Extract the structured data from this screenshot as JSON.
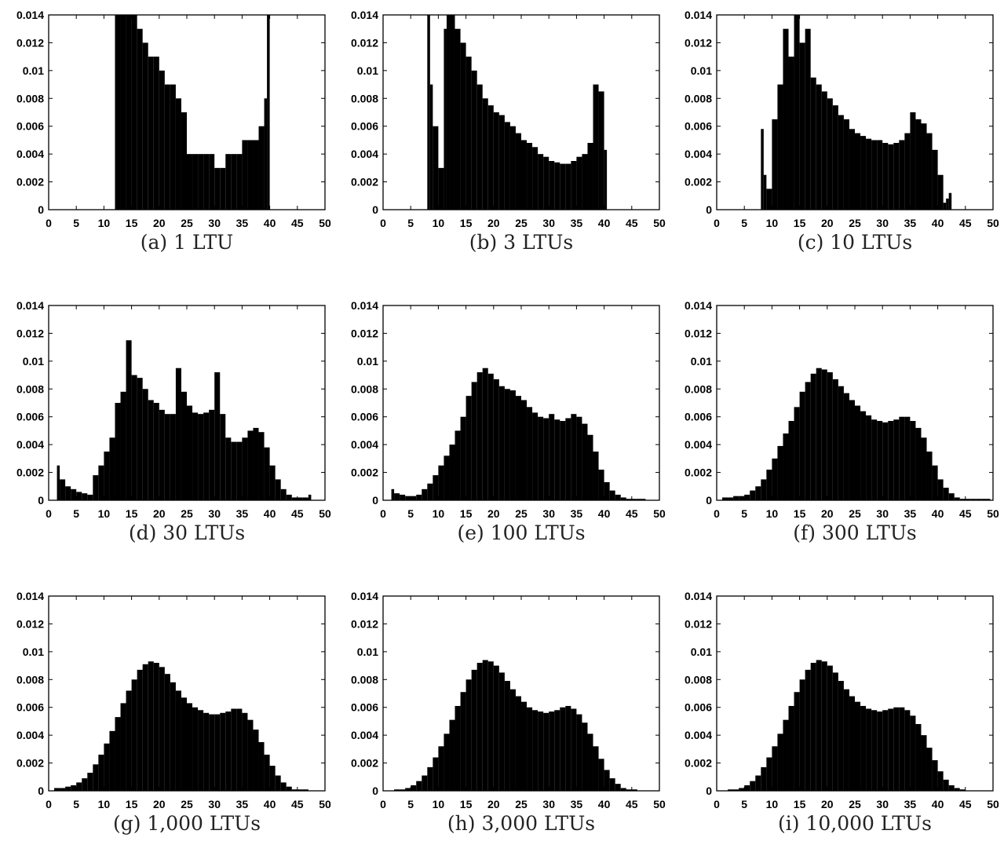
{
  "chart_data": [
    {
      "type": "bar",
      "caption": "(a) 1 LTU",
      "xlim": [
        0,
        50
      ],
      "ylim": [
        0,
        0.014
      ],
      "xticks": [
        "0",
        "5",
        "10",
        "15",
        "20",
        "25",
        "30",
        "35",
        "40",
        "45",
        "50"
      ],
      "yticks": [
        "0",
        "0.002",
        "0.004",
        "0.006",
        "0.008",
        "0.01",
        "0.012",
        "0.014"
      ],
      "x": [
        12,
        13,
        14,
        15,
        16,
        17,
        18,
        19,
        20,
        21,
        22,
        23,
        24,
        25,
        26,
        27,
        28,
        29,
        30,
        31,
        32,
        33,
        34,
        35,
        36,
        37,
        38,
        39,
        39.5
      ],
      "values": [
        0.014,
        0.014,
        0.014,
        0.014,
        0.013,
        0.012,
        0.011,
        0.011,
        0.01,
        0.009,
        0.009,
        0.008,
        0.007,
        0.004,
        0.004,
        0.004,
        0.004,
        0.004,
        0.003,
        0.003,
        0.004,
        0.004,
        0.004,
        0.005,
        0.005,
        0.005,
        0.006,
        0.008,
        0.014
      ]
    },
    {
      "type": "bar",
      "caption": "(b) 3 LTUs",
      "xlim": [
        0,
        50
      ],
      "ylim": [
        0,
        0.014
      ],
      "xticks": [
        "0",
        "5",
        "10",
        "15",
        "20",
        "25",
        "30",
        "35",
        "40",
        "45",
        "50"
      ],
      "yticks": [
        "0",
        "0.002",
        "0.004",
        "0.006",
        "0.008",
        "0.01",
        "0.012",
        "0.014"
      ],
      "x": [
        8,
        8.5,
        9,
        10,
        11,
        11.5,
        12,
        13,
        14,
        15,
        16,
        17,
        18,
        19,
        20,
        21,
        22,
        23,
        24,
        25,
        26,
        27,
        28,
        29,
        30,
        31,
        32,
        33,
        34,
        35,
        36,
        37,
        38,
        39,
        40
      ],
      "values": [
        0.014,
        0.009,
        0.006,
        0.003,
        0.013,
        0.014,
        0.014,
        0.013,
        0.012,
        0.011,
        0.01,
        0.009,
        0.008,
        0.0075,
        0.007,
        0.0068,
        0.0063,
        0.006,
        0.0055,
        0.005,
        0.0048,
        0.0045,
        0.004,
        0.0038,
        0.0035,
        0.0034,
        0.0033,
        0.0033,
        0.0035,
        0.0038,
        0.004,
        0.0048,
        0.009,
        0.0085,
        0.0043
      ]
    },
    {
      "type": "bar",
      "caption": "(c) 10 LTUs",
      "xlim": [
        0,
        50
      ],
      "ylim": [
        0,
        0.014
      ],
      "xticks": [
        "0",
        "5",
        "10",
        "15",
        "20",
        "25",
        "30",
        "35",
        "40",
        "45",
        "50"
      ],
      "yticks": [
        "0",
        "0.002",
        "0.004",
        "0.006",
        "0.008",
        "0.01",
        "0.012",
        "0.014"
      ],
      "x": [
        8,
        8.5,
        9,
        10,
        11,
        12,
        13,
        14,
        15,
        16,
        17,
        18,
        19,
        20,
        21,
        22,
        23,
        24,
        25,
        26,
        27,
        28,
        29,
        30,
        31,
        32,
        33,
        34,
        35,
        36,
        37,
        38,
        39,
        40,
        41,
        41.5,
        42
      ],
      "values": [
        0.0058,
        0.0025,
        0.0015,
        0.0065,
        0.009,
        0.013,
        0.011,
        0.014,
        0.012,
        0.013,
        0.0095,
        0.009,
        0.0085,
        0.008,
        0.0075,
        0.0068,
        0.0065,
        0.0058,
        0.0055,
        0.0053,
        0.0051,
        0.005,
        0.005,
        0.0048,
        0.0047,
        0.0048,
        0.005,
        0.0055,
        0.007,
        0.0065,
        0.0062,
        0.0055,
        0.0043,
        0.0025,
        0.0005,
        0.0008,
        0.0012
      ]
    },
    {
      "type": "bar",
      "caption": "(d) 30 LTUs",
      "xlim": [
        0,
        50
      ],
      "ylim": [
        0,
        0.014
      ],
      "xticks": [
        "0",
        "5",
        "10",
        "15",
        "20",
        "25",
        "30",
        "35",
        "40",
        "45",
        "50"
      ],
      "yticks": [
        "0",
        "0.002",
        "0.004",
        "0.006",
        "0.008",
        "0.01",
        "0.012",
        "0.014"
      ],
      "x": [
        1.5,
        2,
        3,
        4,
        5,
        6,
        7,
        8,
        9,
        10,
        11,
        12,
        13,
        14,
        15,
        16,
        17,
        18,
        19,
        20,
        21,
        22,
        23,
        24,
        25,
        26,
        27,
        28,
        29,
        30,
        31,
        32,
        33,
        34,
        35,
        36,
        37,
        38,
        39,
        40,
        41,
        42,
        43,
        44,
        45,
        46,
        47
      ],
      "values": [
        0.0025,
        0.0015,
        0.001,
        0.0008,
        0.0006,
        0.0005,
        0.0004,
        0.0018,
        0.0025,
        0.0035,
        0.0045,
        0.007,
        0.0078,
        0.0115,
        0.009,
        0.0088,
        0.008,
        0.0072,
        0.007,
        0.0065,
        0.0062,
        0.0062,
        0.0095,
        0.0078,
        0.0068,
        0.0063,
        0.0062,
        0.0063,
        0.0065,
        0.0092,
        0.0062,
        0.0045,
        0.0042,
        0.0042,
        0.0045,
        0.005,
        0.0052,
        0.0049,
        0.0038,
        0.0025,
        0.0015,
        0.0008,
        0.0004,
        0.0002,
        0.0002,
        0.0002,
        0.0004
      ]
    },
    {
      "type": "bar",
      "caption": "(e) 100 LTUs",
      "xlim": [
        0,
        50
      ],
      "ylim": [
        0,
        0.014
      ],
      "xticks": [
        "0",
        "5",
        "10",
        "15",
        "20",
        "25",
        "30",
        "35",
        "40",
        "45",
        "50"
      ],
      "yticks": [
        "0",
        "0.002",
        "0.004",
        "0.006",
        "0.008",
        "0.01",
        "0.012",
        "0.014"
      ],
      "x": [
        1.5,
        2,
        3,
        4,
        5,
        6,
        7,
        8,
        9,
        10,
        11,
        12,
        13,
        14,
        15,
        16,
        17,
        18,
        19,
        20,
        21,
        22,
        23,
        24,
        25,
        26,
        27,
        28,
        29,
        30,
        31,
        32,
        33,
        34,
        35,
        36,
        37,
        38,
        39,
        40,
        41,
        42,
        43,
        44,
        45,
        46,
        47
      ],
      "values": [
        0.0008,
        0.0005,
        0.0004,
        0.0003,
        0.0003,
        0.0004,
        0.0008,
        0.0012,
        0.0018,
        0.0025,
        0.0032,
        0.004,
        0.005,
        0.006,
        0.0075,
        0.0085,
        0.0092,
        0.0095,
        0.0091,
        0.0087,
        0.0082,
        0.008,
        0.0079,
        0.0075,
        0.0072,
        0.0067,
        0.0063,
        0.006,
        0.0059,
        0.0062,
        0.0058,
        0.0057,
        0.0059,
        0.0062,
        0.006,
        0.0055,
        0.0047,
        0.0035,
        0.0022,
        0.0013,
        0.0007,
        0.0004,
        0.0002,
        0.0001,
        0.0001,
        0.0001,
        0.0001
      ]
    },
    {
      "type": "bar",
      "caption": "(f) 300 LTUs",
      "xlim": [
        0,
        50
      ],
      "ylim": [
        0,
        0.014
      ],
      "xticks": [
        "0",
        "5",
        "10",
        "15",
        "20",
        "25",
        "30",
        "35",
        "40",
        "45",
        "50"
      ],
      "yticks": [
        "0",
        "0.002",
        "0.004",
        "0.006",
        "0.008",
        "0.01",
        "0.012",
        "0.014"
      ],
      "x": [
        1,
        2,
        3,
        4,
        5,
        6,
        7,
        8,
        9,
        10,
        11,
        12,
        13,
        14,
        15,
        16,
        17,
        18,
        19,
        20,
        21,
        22,
        23,
        24,
        25,
        26,
        27,
        28,
        29,
        30,
        31,
        32,
        33,
        34,
        35,
        36,
        37,
        38,
        39,
        40,
        41,
        42,
        43,
        44,
        45,
        46,
        47,
        48,
        49
      ],
      "values": [
        0.0002,
        0.0002,
        0.0003,
        0.0003,
        0.0004,
        0.0007,
        0.001,
        0.0015,
        0.0022,
        0.003,
        0.0039,
        0.0048,
        0.0057,
        0.0067,
        0.0078,
        0.0085,
        0.0091,
        0.0095,
        0.0094,
        0.0092,
        0.0087,
        0.0082,
        0.0077,
        0.0072,
        0.0068,
        0.0064,
        0.0061,
        0.0058,
        0.0057,
        0.0056,
        0.0057,
        0.0058,
        0.006,
        0.006,
        0.0057,
        0.0052,
        0.0045,
        0.0035,
        0.0025,
        0.0015,
        0.0009,
        0.0005,
        0.0002,
        0.0001,
        0.0001,
        0.0001,
        0.0001,
        0.0001,
        0.0001
      ]
    },
    {
      "type": "bar",
      "caption": "(g) 1,000 LTUs",
      "xlim": [
        0,
        50
      ],
      "ylim": [
        0,
        0.014
      ],
      "xticks": [
        "0",
        "5",
        "10",
        "15",
        "20",
        "25",
        "30",
        "35",
        "40",
        "45",
        "50"
      ],
      "yticks": [
        "0",
        "0.002",
        "0.004",
        "0.006",
        "0.008",
        "0.01",
        "0.012",
        "0.014"
      ],
      "x": [
        1,
        2,
        3,
        4,
        5,
        6,
        7,
        8,
        9,
        10,
        11,
        12,
        13,
        14,
        15,
        16,
        17,
        18,
        19,
        20,
        21,
        22,
        23,
        24,
        25,
        26,
        27,
        28,
        29,
        30,
        31,
        32,
        33,
        34,
        35,
        36,
        37,
        38,
        39,
        40,
        41,
        42,
        43,
        44,
        45,
        46,
        47,
        48,
        49
      ],
      "values": [
        0.0002,
        0.0002,
        0.0003,
        0.0004,
        0.0006,
        0.0009,
        0.0013,
        0.0019,
        0.0026,
        0.0034,
        0.0043,
        0.0053,
        0.0063,
        0.0072,
        0.008,
        0.0087,
        0.0091,
        0.0093,
        0.0092,
        0.0089,
        0.0084,
        0.0078,
        0.0072,
        0.0067,
        0.0063,
        0.006,
        0.0058,
        0.0056,
        0.0055,
        0.0055,
        0.0056,
        0.0057,
        0.0059,
        0.0059,
        0.0056,
        0.0051,
        0.0044,
        0.0035,
        0.0026,
        0.0018,
        0.0011,
        0.0006,
        0.0003,
        0.0001,
        0.0001,
        0.0001,
        0,
        0,
        0
      ]
    },
    {
      "type": "bar",
      "caption": "(h) 3,000 LTUs",
      "xlim": [
        0,
        50
      ],
      "ylim": [
        0,
        0.014
      ],
      "xticks": [
        "0",
        "5",
        "10",
        "15",
        "20",
        "25",
        "30",
        "35",
        "40",
        "45",
        "50"
      ],
      "yticks": [
        "0",
        "0.002",
        "0.004",
        "0.006",
        "0.008",
        "0.01",
        "0.012",
        "0.014"
      ],
      "x": [
        1,
        2,
        3,
        4,
        5,
        6,
        7,
        8,
        9,
        10,
        11,
        12,
        13,
        14,
        15,
        16,
        17,
        18,
        19,
        20,
        21,
        22,
        23,
        24,
        25,
        26,
        27,
        28,
        29,
        30,
        31,
        32,
        33,
        34,
        35,
        36,
        37,
        38,
        39,
        40,
        41,
        42,
        43,
        44,
        45,
        46,
        47,
        48,
        49
      ],
      "values": [
        0,
        0.0001,
        0.0001,
        0.0002,
        0.0004,
        0.0007,
        0.0011,
        0.0017,
        0.0024,
        0.0032,
        0.0041,
        0.0051,
        0.0061,
        0.0071,
        0.008,
        0.0087,
        0.0092,
        0.0094,
        0.0093,
        0.009,
        0.0085,
        0.0079,
        0.0073,
        0.0068,
        0.0064,
        0.006,
        0.0058,
        0.0057,
        0.0056,
        0.0057,
        0.0058,
        0.006,
        0.0061,
        0.0059,
        0.0055,
        0.0049,
        0.0041,
        0.0032,
        0.0023,
        0.0015,
        0.0009,
        0.0005,
        0.0002,
        0.0001,
        0.0001,
        0,
        0,
        0,
        0
      ]
    },
    {
      "type": "bar",
      "caption": "(i) 10,000 LTUs",
      "xlim": [
        0,
        50
      ],
      "ylim": [
        0,
        0.014
      ],
      "xticks": [
        "0",
        "5",
        "10",
        "15",
        "20",
        "25",
        "30",
        "35",
        "40",
        "45",
        "50"
      ],
      "yticks": [
        "0",
        "0.002",
        "0.004",
        "0.006",
        "0.008",
        "0.01",
        "0.012",
        "0.014"
      ],
      "x": [
        1,
        2,
        3,
        4,
        5,
        6,
        7,
        8,
        9,
        10,
        11,
        12,
        13,
        14,
        15,
        16,
        17,
        18,
        19,
        20,
        21,
        22,
        23,
        24,
        25,
        26,
        27,
        28,
        29,
        30,
        31,
        32,
        33,
        34,
        35,
        36,
        37,
        38,
        39,
        40,
        41,
        42,
        43,
        44,
        45,
        46,
        47,
        48,
        49
      ],
      "values": [
        0,
        0.0001,
        0.0001,
        0.0002,
        0.0004,
        0.0007,
        0.0011,
        0.0017,
        0.0024,
        0.0032,
        0.0041,
        0.0051,
        0.0061,
        0.0071,
        0.008,
        0.0087,
        0.0092,
        0.0094,
        0.0093,
        0.009,
        0.0085,
        0.0079,
        0.0073,
        0.0068,
        0.0064,
        0.0061,
        0.0059,
        0.0058,
        0.0057,
        0.0058,
        0.0059,
        0.006,
        0.006,
        0.0058,
        0.0054,
        0.0048,
        0.004,
        0.0031,
        0.0022,
        0.0014,
        0.0008,
        0.0004,
        0.0002,
        0.0001,
        0,
        0,
        0,
        0,
        0
      ]
    }
  ]
}
